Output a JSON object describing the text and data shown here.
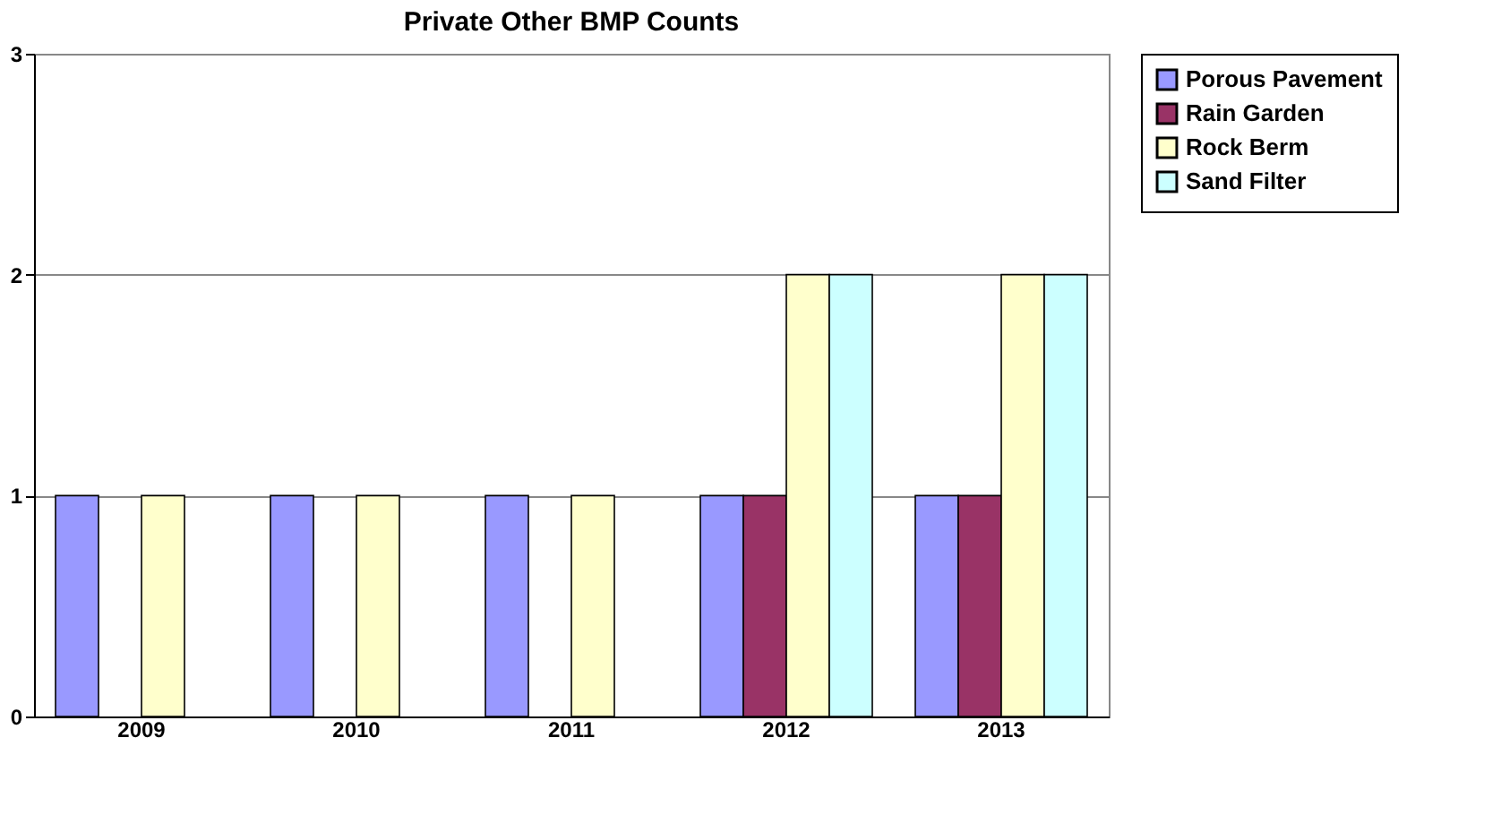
{
  "chart_data": {
    "type": "bar",
    "title": "Private Other BMP Counts",
    "categories": [
      "2009",
      "2010",
      "2011",
      "2012",
      "2013"
    ],
    "series": [
      {
        "name": "Porous Pavement",
        "color": "#9999ff",
        "values": [
          1,
          1,
          1,
          1,
          1
        ]
      },
      {
        "name": "Rain Garden",
        "color": "#993366",
        "values": [
          null,
          null,
          null,
          1,
          1
        ]
      },
      {
        "name": "Rock Berm",
        "color": "#ffffcc",
        "values": [
          1,
          1,
          1,
          2,
          2
        ]
      },
      {
        "name": "Sand Filter",
        "color": "#ccffff",
        "values": [
          null,
          null,
          null,
          2,
          2
        ]
      }
    ],
    "ylim": [
      0,
      3
    ],
    "yticks": [
      0,
      1,
      2,
      3
    ],
    "grid": "y",
    "legend": "right"
  }
}
